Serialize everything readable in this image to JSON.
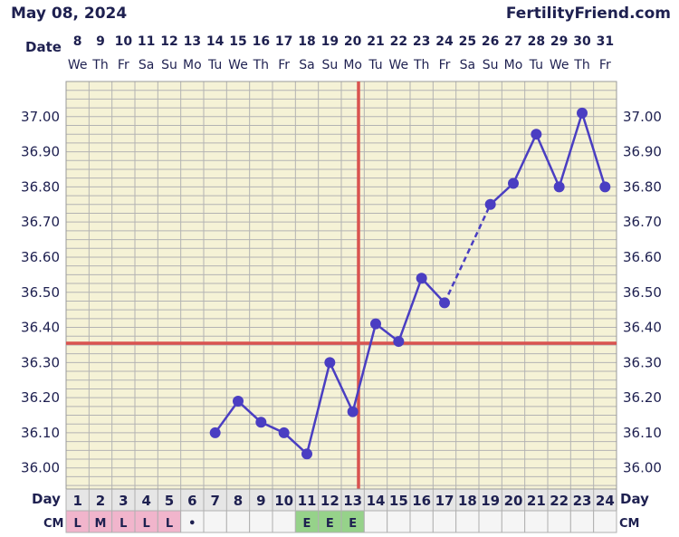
{
  "header": {
    "date": "May 08, 2024",
    "site": "FertilityFriend.com"
  },
  "row_labels": {
    "date": "Date",
    "day": "Day",
    "cm": "CM"
  },
  "colors": {
    "plot_bg": "#f5f2d6",
    "grid": "#b3b3b3",
    "line": "#4a3ec2",
    "ovulation": "#d9534f",
    "cm_menses": "#f1b5cc",
    "cm_egg_white": "#96d28a",
    "cm_empty": "#f5f5f5",
    "cycle_day_bg": "#e6e6e6"
  },
  "chart_data": {
    "type": "line",
    "dates": [
      "8",
      "9",
      "10",
      "11",
      "12",
      "13",
      "14",
      "15",
      "16",
      "17",
      "18",
      "19",
      "20",
      "21",
      "22",
      "23",
      "24",
      "25",
      "26",
      "27",
      "28",
      "29",
      "30",
      "31"
    ],
    "weekdays": [
      "We",
      "Th",
      "Fr",
      "Sa",
      "Su",
      "Mo",
      "Tu",
      "We",
      "Th",
      "Fr",
      "Sa",
      "Su",
      "Mo",
      "Tu",
      "We",
      "Th",
      "Fr",
      "Sa",
      "Su",
      "Mo",
      "Tu",
      "We",
      "Th",
      "Fr"
    ],
    "cycle_days": [
      "1",
      "2",
      "3",
      "4",
      "5",
      "6",
      "7",
      "8",
      "9",
      "10",
      "11",
      "12",
      "13",
      "14",
      "15",
      "16",
      "17",
      "18",
      "19",
      "20",
      "21",
      "22",
      "23",
      "24"
    ],
    "temps": [
      null,
      null,
      null,
      null,
      null,
      null,
      36.1,
      36.19,
      36.13,
      36.1,
      36.04,
      36.3,
      36.16,
      36.41,
      36.36,
      36.54,
      36.47,
      null,
      36.75,
      36.81,
      36.95,
      36.8,
      37.01,
      36.8
    ],
    "dashed_segments": [
      [
        16,
        18
      ]
    ],
    "cervical_mucus": [
      "L",
      "M",
      "L",
      "L",
      "L",
      "•",
      "",
      "",
      "",
      "",
      "E",
      "E",
      "E",
      "",
      "",
      "",
      "",
      "",
      "",
      "",
      "",
      "",
      "",
      ""
    ],
    "cm_types": [
      "menses",
      "menses",
      "menses",
      "menses",
      "menses",
      "dot",
      "empty",
      "empty",
      "empty",
      "empty",
      "egg_white",
      "egg_white",
      "egg_white",
      "empty",
      "empty",
      "empty",
      "empty",
      "empty",
      "empty",
      "empty",
      "empty",
      "empty",
      "empty",
      "empty"
    ],
    "y_ticks": [
      "37.00",
      "36.90",
      "36.80",
      "36.70",
      "36.60",
      "36.50",
      "36.40",
      "36.30",
      "36.20",
      "36.10",
      "36.00"
    ],
    "ylim": [
      35.94,
      37.1
    ],
    "coverline": 36.355,
    "ovulation_day_index": 12
  }
}
